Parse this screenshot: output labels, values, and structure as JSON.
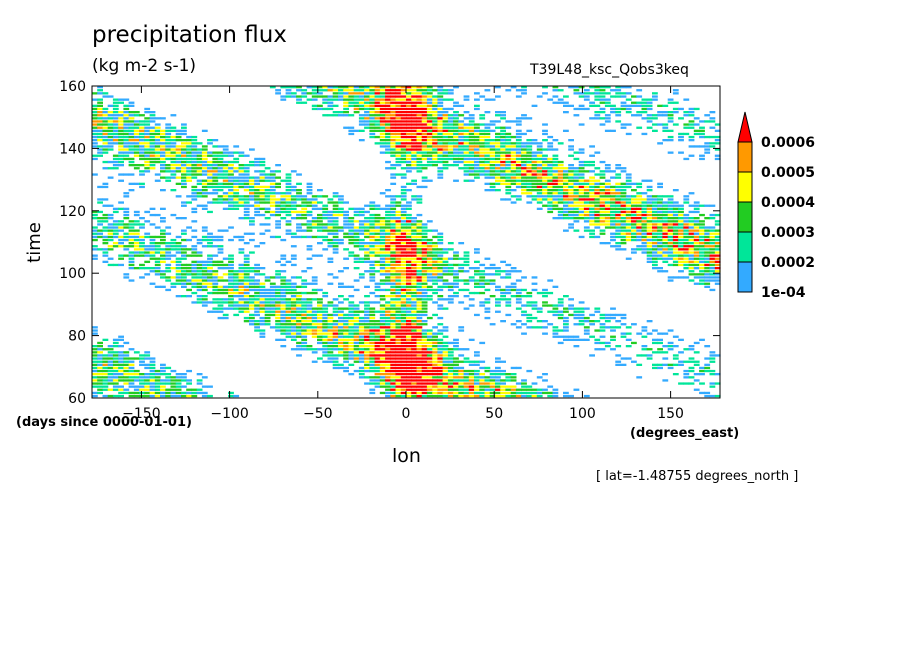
{
  "chart_data": {
    "type": "heatmap",
    "title": "precipitation flux",
    "units": "(kg m-2 s-1)",
    "run_label": "T39L48_ksc_Qobs3keq",
    "xlabel": "lon",
    "ylabel": "time",
    "x_units": "(degrees_east)",
    "y_units": "(days since 0000-01-01)",
    "note": "[ lat=-1.48755 degrees_north ]",
    "xlim": [
      -178,
      178
    ],
    "ylim": [
      60,
      160
    ],
    "x_ticks": [
      -150,
      -100,
      -50,
      0,
      50,
      100,
      150
    ],
    "y_ticks": [
      60,
      80,
      100,
      120,
      140,
      160
    ],
    "x_tick_labels": [
      "−150",
      "−100",
      "−50",
      "0",
      "50",
      "100",
      "150"
    ],
    "y_tick_labels": [
      "60",
      "80",
      "100",
      "120",
      "140",
      "160"
    ],
    "colorbar": {
      "levels": [
        "1e-04",
        "0.0002",
        "0.0003",
        "0.0004",
        "0.0005",
        "0.0006"
      ],
      "colors": [
        "#33aaff",
        "#00e699",
        "#22cc22",
        "#ffff00",
        "#ff9900",
        "#ff0000"
      ]
    }
  }
}
